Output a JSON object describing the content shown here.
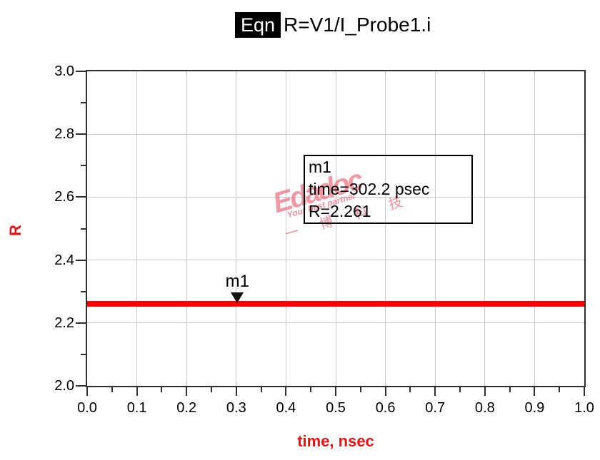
{
  "title": {
    "badge": "Eqn",
    "equation": "R=V1/I_Probe1.i"
  },
  "watermark": {
    "brand": "Edadoc",
    "tagline": "Your best partner",
    "chinese": "一 博 科 技",
    "color": "#e8455a"
  },
  "colors": {
    "trace": "#ff0000",
    "axis_title": "#ee1111",
    "frame": "#2e2e2e",
    "grid": "#c9c9c9",
    "tick_label": "#000000"
  },
  "chart_data": {
    "type": "line",
    "title": "R=V1/I_Probe1.i",
    "xlabel": "time, nsec",
    "ylabel": "R",
    "xlim": [
      0.0,
      1.0
    ],
    "ylim": [
      2.0,
      3.0
    ],
    "grid": true,
    "x_major_ticks": [
      0.0,
      0.1,
      0.2,
      0.3,
      0.4,
      0.5,
      0.6,
      0.7,
      0.8,
      0.9,
      1.0
    ],
    "x_tick_labels": [
      "0.0",
      "0.1",
      "0.2",
      "0.3",
      "0.4",
      "0.5",
      "0.6",
      "0.7",
      "0.8",
      "0.9",
      "1.0"
    ],
    "x_minor_ticks": [
      0.05,
      0.15,
      0.25,
      0.35,
      0.45,
      0.55,
      0.65,
      0.75,
      0.85,
      0.95
    ],
    "y_major_ticks": [
      2.0,
      2.2,
      2.4,
      2.6,
      2.8,
      3.0
    ],
    "y_tick_labels": [
      "2.0",
      "2.2",
      "2.4",
      "2.6",
      "2.8",
      "3.0"
    ],
    "y_minor_ticks": [
      2.1,
      2.3,
      2.5,
      2.7,
      2.9
    ],
    "series": [
      {
        "name": "R",
        "color": "#ff0000",
        "constant_value": 2.261,
        "x_start": 0.0,
        "x_end": 1.0
      }
    ],
    "marker": {
      "id": "m1",
      "x": 0.3022,
      "y": 2.261,
      "time_label": "302.2 psec"
    },
    "annotation": {
      "lines": [
        "m1",
        "time=302.2 psec",
        "R=2.261"
      ]
    }
  }
}
